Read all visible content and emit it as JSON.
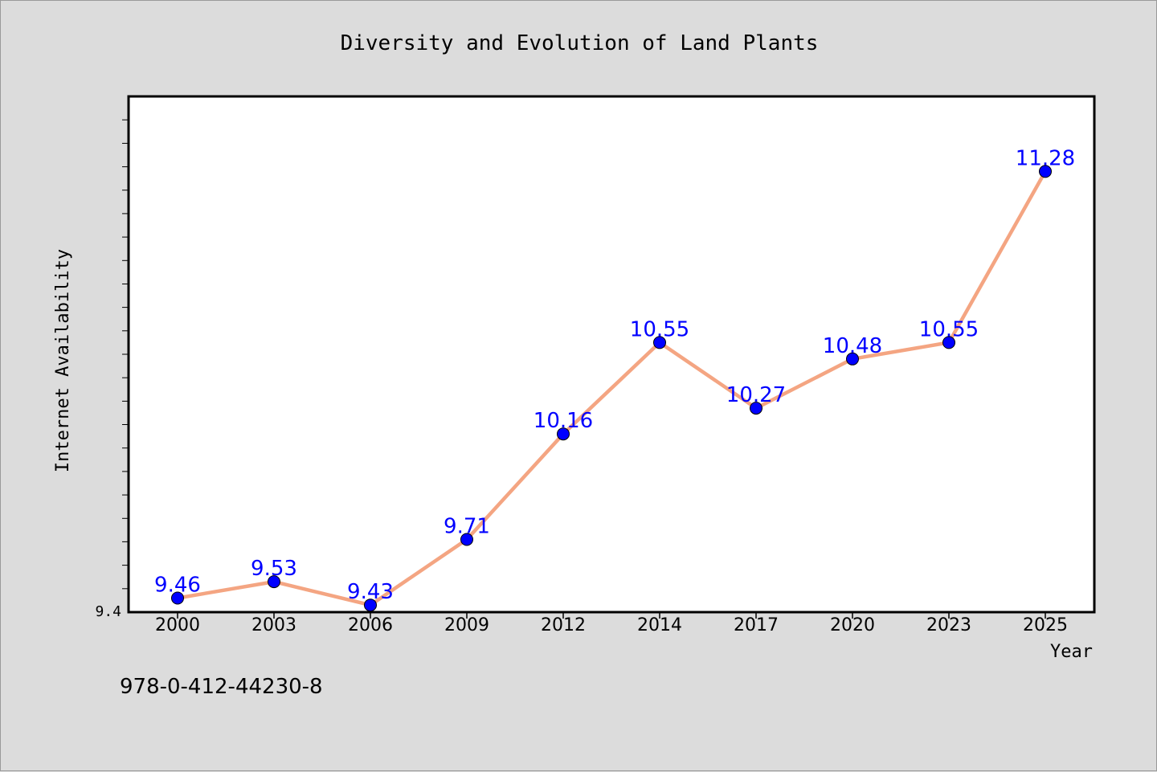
{
  "chart_data": {
    "type": "line",
    "title": "Diversity and Evolution of Land Plants",
    "xlabel": "Year",
    "ylabel": "Internet Availability",
    "categories": [
      "2000",
      "2003",
      "2006",
      "2009",
      "2012",
      "2014",
      "2017",
      "2020",
      "2023",
      "2025"
    ],
    "series": [
      {
        "values": [
          9.46,
          9.53,
          9.43,
          9.71,
          10.16,
          10.55,
          10.27,
          10.48,
          10.55,
          11.28
        ],
        "labels": [
          "9.46",
          "9.53",
          "9.43",
          "9.71",
          "10.16",
          "10.55",
          "10.27",
          "10.48",
          "10.55",
          "11.28"
        ],
        "line_color": "#f4a582",
        "marker_color": "#0000ff",
        "label_color": "#0000ff"
      }
    ],
    "ylim": [
      9.4,
      11.6
    ],
    "ytick_labels": [
      "9.4"
    ],
    "grid": false
  },
  "footer_text": "978-0-412-44230-8"
}
